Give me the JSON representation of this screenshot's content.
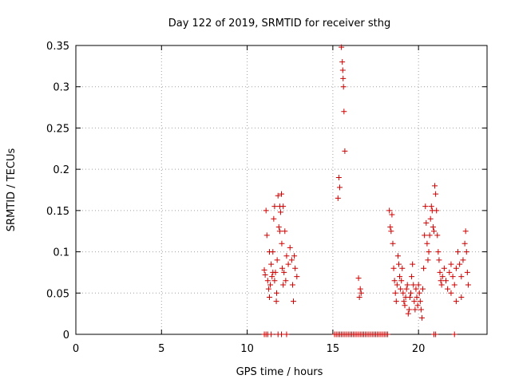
{
  "chart_data": {
    "type": "scatter",
    "title": "Day 122 of 2019, SRMTID for receiver sthg",
    "xlabel": "GPS time / hours",
    "ylabel": "SRMTID / TECUs",
    "xlim": [
      0,
      24
    ],
    "ylim": [
      0,
      0.35
    ],
    "xticks": [
      0,
      5,
      10,
      15,
      20
    ],
    "xtick_labels": [
      "0",
      "5",
      "10",
      "15",
      "20"
    ],
    "yticks": [
      0,
      0.05,
      0.1,
      0.15,
      0.2,
      0.25,
      0.3,
      0.35
    ],
    "ytick_labels": [
      "0",
      "0.05",
      "0.1",
      "0.15",
      "0.2",
      "0.25",
      "0.3",
      "0.35"
    ],
    "grid": true,
    "marker": "plus",
    "color": "#cc0000",
    "series": [
      {
        "name": "SRMTID",
        "points": [
          [
            11.0,
            0.078
          ],
          [
            11.05,
            0.072
          ],
          [
            11.1,
            0.15
          ],
          [
            11.15,
            0.12
          ],
          [
            11.2,
            0.065
          ],
          [
            11.25,
            0.055
          ],
          [
            11.3,
            0.045
          ],
          [
            11.35,
            0.06
          ],
          [
            11.4,
            0.085
          ],
          [
            11.45,
            0.07
          ],
          [
            11.5,
            0.1
          ],
          [
            11.55,
            0.14
          ],
          [
            11.6,
            0.155
          ],
          [
            11.65,
            0.075
          ],
          [
            11.7,
            0.04
          ],
          [
            11.72,
            0.05
          ],
          [
            11.75,
            0.09
          ],
          [
            11.8,
            0.168
          ],
          [
            11.85,
            0.13
          ],
          [
            11.9,
            0.155
          ],
          [
            11.95,
            0.148
          ],
          [
            12.0,
            0.17
          ],
          [
            12.02,
            0.11
          ],
          [
            12.05,
            0.08
          ],
          [
            12.1,
            0.06
          ],
          [
            12.15,
            0.075
          ],
          [
            12.2,
            0.125
          ],
          [
            12.3,
            0.095
          ],
          [
            12.4,
            0.085
          ],
          [
            12.5,
            0.105
          ],
          [
            12.6,
            0.09
          ],
          [
            12.65,
            0.06
          ],
          [
            12.7,
            0.04
          ],
          [
            12.75,
            0.095
          ],
          [
            12.8,
            0.08
          ],
          [
            12.9,
            0.07
          ],
          [
            11.3,
            0.1
          ],
          [
            11.5,
            0.075
          ],
          [
            11.6,
            0.065
          ],
          [
            11.9,
            0.125
          ],
          [
            12.1,
            0.155
          ],
          [
            12.25,
            0.065
          ],
          [
            15.3,
            0.165
          ],
          [
            15.35,
            0.19
          ],
          [
            15.4,
            0.178
          ],
          [
            15.5,
            0.348
          ],
          [
            15.55,
            0.33
          ],
          [
            15.6,
            0.31
          ],
          [
            15.62,
            0.3
          ],
          [
            15.58,
            0.32
          ],
          [
            15.65,
            0.27
          ],
          [
            15.7,
            0.222
          ],
          [
            16.5,
            0.068
          ],
          [
            16.55,
            0.045
          ],
          [
            16.6,
            0.055
          ],
          [
            16.65,
            0.05
          ],
          [
            18.3,
            0.15
          ],
          [
            18.35,
            0.13
          ],
          [
            18.4,
            0.125
          ],
          [
            18.45,
            0.145
          ],
          [
            18.5,
            0.11
          ],
          [
            18.55,
            0.08
          ],
          [
            18.6,
            0.065
          ],
          [
            18.65,
            0.05
          ],
          [
            18.7,
            0.04
          ],
          [
            18.75,
            0.06
          ],
          [
            18.8,
            0.095
          ],
          [
            18.85,
            0.085
          ],
          [
            18.9,
            0.07
          ],
          [
            18.95,
            0.055
          ],
          [
            19.0,
            0.065
          ],
          [
            19.05,
            0.08
          ],
          [
            19.1,
            0.05
          ],
          [
            19.15,
            0.04
          ],
          [
            19.2,
            0.035
          ],
          [
            19.25,
            0.045
          ],
          [
            19.3,
            0.055
          ],
          [
            19.35,
            0.06
          ],
          [
            19.4,
            0.025
          ],
          [
            19.45,
            0.03
          ],
          [
            19.5,
            0.045
          ],
          [
            19.55,
            0.05
          ],
          [
            19.6,
            0.07
          ],
          [
            19.65,
            0.085
          ],
          [
            19.7,
            0.06
          ],
          [
            19.75,
            0.04
          ],
          [
            19.8,
            0.03
          ],
          [
            19.85,
            0.055
          ],
          [
            19.9,
            0.045
          ],
          [
            19.95,
            0.035
          ],
          [
            20.0,
            0.06
          ],
          [
            20.05,
            0.05
          ],
          [
            20.1,
            0.04
          ],
          [
            20.15,
            0.03
          ],
          [
            20.2,
            0.02
          ],
          [
            20.25,
            0.055
          ],
          [
            20.3,
            0.08
          ],
          [
            20.35,
            0.12
          ],
          [
            20.4,
            0.155
          ],
          [
            20.45,
            0.135
          ],
          [
            20.5,
            0.11
          ],
          [
            20.55,
            0.09
          ],
          [
            20.6,
            0.1
          ],
          [
            20.65,
            0.12
          ],
          [
            20.7,
            0.14
          ],
          [
            20.75,
            0.155
          ],
          [
            20.8,
            0.15
          ],
          [
            20.85,
            0.13
          ],
          [
            20.9,
            0.125
          ],
          [
            20.95,
            0.18
          ],
          [
            21.0,
            0.17
          ],
          [
            21.05,
            0.15
          ],
          [
            21.1,
            0.12
          ],
          [
            21.15,
            0.1
          ],
          [
            21.2,
            0.09
          ],
          [
            21.25,
            0.075
          ],
          [
            21.3,
            0.065
          ],
          [
            21.35,
            0.06
          ],
          [
            21.4,
            0.07
          ],
          [
            21.5,
            0.08
          ],
          [
            21.6,
            0.065
          ],
          [
            21.7,
            0.055
          ],
          [
            21.8,
            0.075
          ],
          [
            21.9,
            0.085
          ],
          [
            22.0,
            0.07
          ],
          [
            22.1,
            0.06
          ],
          [
            22.2,
            0.08
          ],
          [
            22.3,
            0.1
          ],
          [
            22.4,
            0.085
          ],
          [
            22.5,
            0.07
          ],
          [
            22.6,
            0.09
          ],
          [
            22.7,
            0.11
          ],
          [
            22.75,
            0.125
          ],
          [
            22.8,
            0.1
          ],
          [
            22.85,
            0.075
          ],
          [
            22.9,
            0.06
          ],
          [
            22.5,
            0.045
          ],
          [
            22.2,
            0.04
          ],
          [
            21.9,
            0.05
          ],
          [
            11.0,
            0.0
          ],
          [
            11.1,
            0.0
          ],
          [
            11.2,
            0.0
          ],
          [
            11.4,
            0.0
          ],
          [
            11.8,
            0.0
          ],
          [
            12.0,
            0.0
          ],
          [
            12.3,
            0.0
          ],
          [
            15.1,
            0.0
          ],
          [
            15.2,
            0.0
          ],
          [
            15.3,
            0.0
          ],
          [
            15.4,
            0.0
          ],
          [
            15.5,
            0.0
          ],
          [
            15.6,
            0.0
          ],
          [
            15.7,
            0.0
          ],
          [
            15.8,
            0.0
          ],
          [
            15.9,
            0.0
          ],
          [
            16.0,
            0.0
          ],
          [
            16.1,
            0.0
          ],
          [
            16.2,
            0.0
          ],
          [
            16.3,
            0.0
          ],
          [
            16.4,
            0.0
          ],
          [
            16.5,
            0.0
          ],
          [
            16.6,
            0.0
          ],
          [
            16.7,
            0.0
          ],
          [
            16.8,
            0.0
          ],
          [
            16.9,
            0.0
          ],
          [
            17.0,
            0.0
          ],
          [
            17.1,
            0.0
          ],
          [
            17.2,
            0.0
          ],
          [
            17.3,
            0.0
          ],
          [
            17.4,
            0.0
          ],
          [
            17.5,
            0.0
          ],
          [
            17.6,
            0.0
          ],
          [
            17.7,
            0.0
          ],
          [
            17.8,
            0.0
          ],
          [
            17.9,
            0.0
          ],
          [
            18.0,
            0.0
          ],
          [
            18.1,
            0.0
          ],
          [
            18.2,
            0.0
          ],
          [
            20.9,
            0.0
          ],
          [
            21.0,
            0.0
          ],
          [
            22.1,
            0.0
          ]
        ]
      }
    ]
  }
}
